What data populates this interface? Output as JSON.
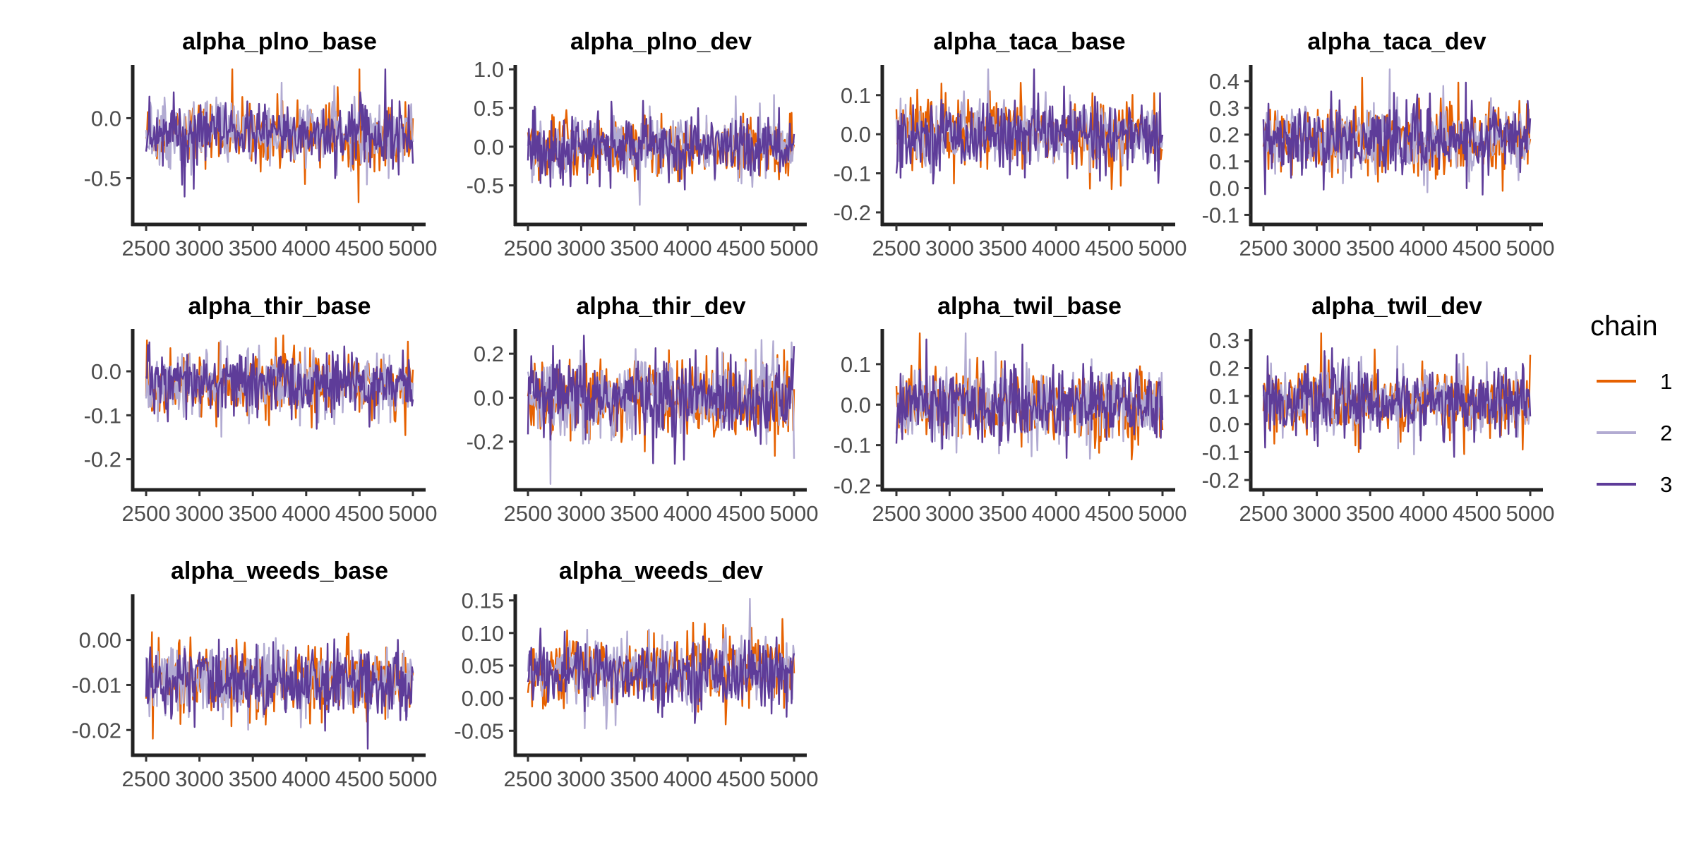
{
  "chart_data": {
    "type": "line",
    "subtype": "mcmc-trace-facets",
    "x_ticks": [
      2500,
      3000,
      3500,
      4000,
      4500,
      5000
    ],
    "xlim": [
      2500,
      5000
    ],
    "legend": {
      "title": "chain",
      "placement": "right",
      "entries": [
        {
          "label": "1",
          "color": "#e66101"
        },
        {
          "label": "2",
          "color": "#b2abd2"
        },
        {
          "label": "3",
          "color": "#5e3c99"
        }
      ]
    },
    "grid": false,
    "panels": [
      {
        "title": "alpha_plno_base",
        "yticks": [
          -0.5,
          0.0
        ],
        "ytick_labels": [
          "-0.5",
          "0.0"
        ],
        "ylim": [
          -0.85,
          0.42
        ],
        "center": -0.13,
        "spread": 0.13
      },
      {
        "title": "alpha_plno_dev",
        "yticks": [
          -0.5,
          0.0,
          0.5,
          1.0
        ],
        "ytick_labels": [
          "-0.5",
          "0.0",
          "0.5",
          "1.0"
        ],
        "ylim": [
          -0.95,
          1.02
        ],
        "center": 0.0,
        "spread": 0.2
      },
      {
        "title": "alpha_taca_base",
        "yticks": [
          -0.2,
          -0.1,
          0.0,
          0.1
        ],
        "ytick_labels": [
          "-0.2",
          "-0.1",
          "0.0",
          "0.1"
        ],
        "ylim": [
          -0.22,
          0.17
        ],
        "center": 0.0,
        "spread": 0.042
      },
      {
        "title": "alpha_taca_dev",
        "yticks": [
          -0.1,
          0.0,
          0.1,
          0.2,
          0.3,
          0.4
        ],
        "ytick_labels": [
          "-0.1",
          "0.0",
          "0.1",
          "0.2",
          "0.3",
          "0.4"
        ],
        "ylim": [
          -0.12,
          0.45
        ],
        "center": 0.18,
        "spread": 0.065
      },
      {
        "title": "alpha_thir_base",
        "yticks": [
          -0.2,
          -0.1,
          0.0
        ],
        "ytick_labels": [
          "-0.2",
          "-0.1",
          "0.0"
        ],
        "ylim": [
          -0.26,
          0.09
        ],
        "center": -0.03,
        "spread": 0.035
      },
      {
        "title": "alpha_thir_dev",
        "yticks": [
          -0.2,
          0.0,
          0.2
        ],
        "ytick_labels": [
          "-0.2",
          "0.0",
          "0.2"
        ],
        "ylim": [
          -0.4,
          0.3
        ],
        "center": 0.0,
        "spread": 0.09
      },
      {
        "title": "alpha_twil_base",
        "yticks": [
          -0.2,
          -0.1,
          0.0,
          0.1
        ],
        "ytick_labels": [
          "-0.2",
          "-0.1",
          "0.0",
          "0.1"
        ],
        "ylim": [
          -0.2,
          0.18
        ],
        "center": 0.0,
        "spread": 0.045
      },
      {
        "title": "alpha_twil_dev",
        "yticks": [
          -0.2,
          -0.1,
          0.0,
          0.1,
          0.2,
          0.3
        ],
        "ytick_labels": [
          "-0.2",
          "-0.1",
          "0.0",
          "0.1",
          "0.2",
          "0.3"
        ],
        "ylim": [
          -0.22,
          0.33
        ],
        "center": 0.08,
        "spread": 0.06
      },
      {
        "title": "alpha_weeds_base",
        "yticks": [
          -0.02,
          -0.01,
          0.0
        ],
        "ytick_labels": [
          "-0.02",
          "-0.01",
          "0.00"
        ],
        "ylim": [
          -0.0245,
          0.0095
        ],
        "center": -0.009,
        "spread": 0.0038
      },
      {
        "title": "alpha_weeds_dev",
        "yticks": [
          -0.05,
          0.0,
          0.05,
          0.1,
          0.15
        ],
        "ytick_labels": [
          "-0.05",
          "0.00",
          "0.05",
          "0.10",
          "0.15"
        ],
        "ylim": [
          -0.08,
          0.155
        ],
        "center": 0.04,
        "spread": 0.026
      }
    ]
  }
}
